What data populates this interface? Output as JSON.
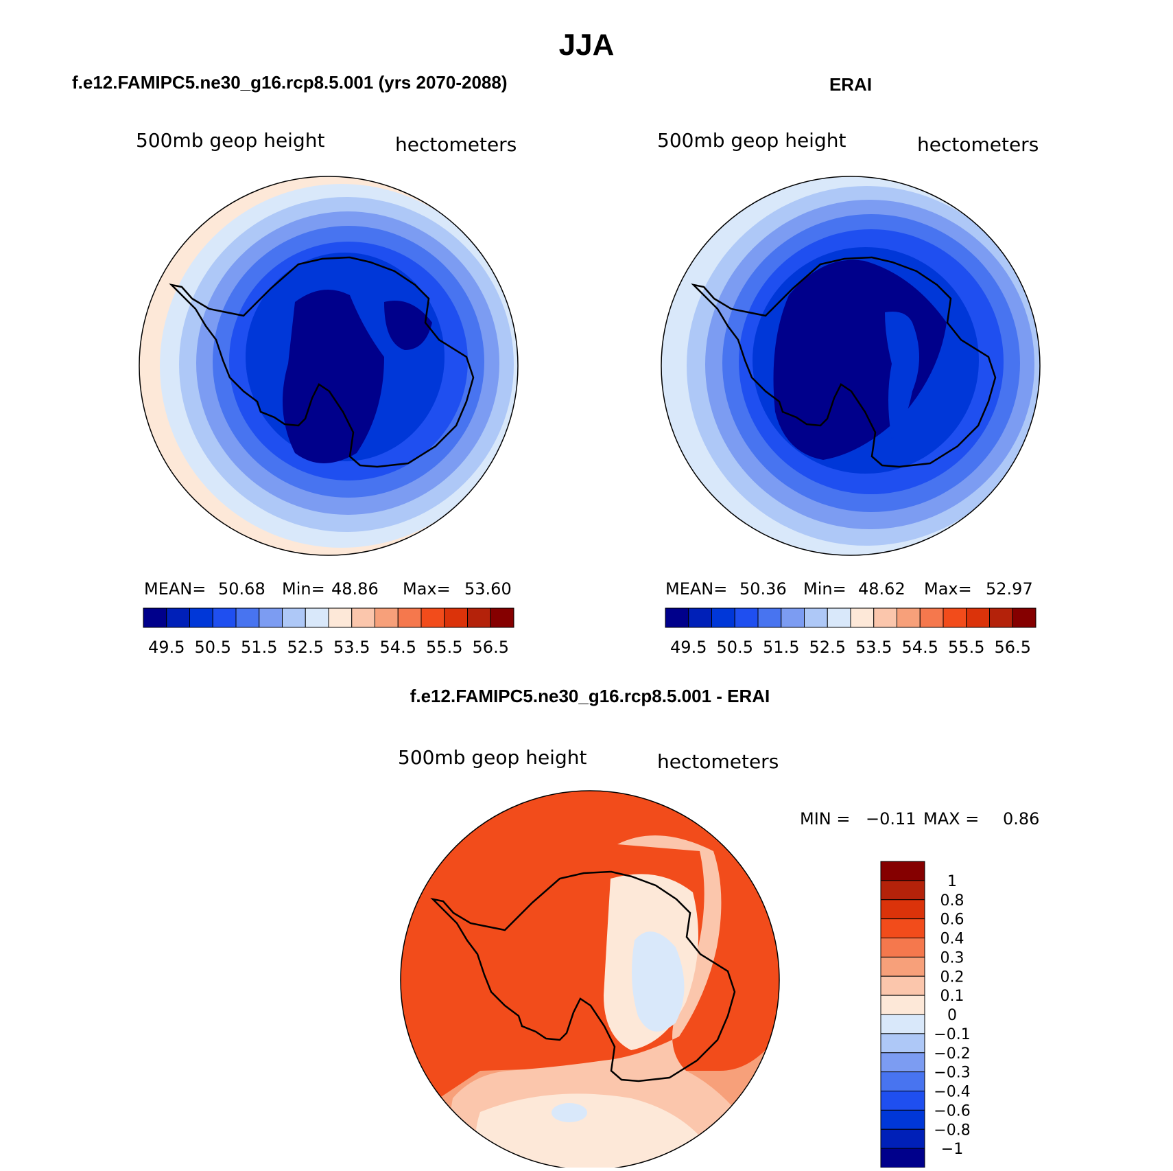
{
  "figure": {
    "season": "JJA"
  },
  "panels": {
    "model": {
      "case_title": "f.e12.FAMIPC5.ne30_g16.rcp8.5.001 (yrs 2070-2088)",
      "variable": "500mb geop height",
      "units": "hectometers",
      "stats": {
        "mean_label": "MEAN=",
        "mean": "50.68",
        "min_label": "Min=",
        "min": "48.86",
        "max_label": "Max=",
        "max": "53.60"
      }
    },
    "obs": {
      "case_title": "ERAI",
      "variable": "500mb geop height",
      "units": "hectometers",
      "stats": {
        "mean_label": "MEAN=",
        "mean": "50.36",
        "min_label": "Min=",
        "min": "48.62",
        "max_label": "Max=",
        "max": "52.97"
      }
    },
    "diff": {
      "case_title": "f.e12.FAMIPC5.ne30_g16.rcp8.5.001 - ERAI",
      "variable": "500mb geop height",
      "units": "hectometers",
      "stats": {
        "min_label": "MIN =",
        "min": "−0.11",
        "max_label": "MAX =",
        "max": "0.86"
      }
    }
  },
  "colorbars": {
    "abs": {
      "colors": [
        "#00008b",
        "#0020b8",
        "#0037d8",
        "#1f4ff0",
        "#4874f0",
        "#7c9cf2",
        "#aec8f7",
        "#d9e8fa",
        "#fde8d8",
        "#fbc6ac",
        "#f7a07a",
        "#f5784d",
        "#f24c1b",
        "#db330a",
        "#b4220a",
        "#850000"
      ],
      "labels": [
        "49.5",
        "50.5",
        "51.5",
        "52.5",
        "53.5",
        "54.5",
        "55.5",
        "56.5"
      ]
    },
    "diff": {
      "colors": [
        "#850000",
        "#b4220a",
        "#db330a",
        "#f24c1b",
        "#f5784d",
        "#f7a07a",
        "#fbc6ac",
        "#fde8d8",
        "#d9e8fa",
        "#aec8f7",
        "#7c9cf2",
        "#4874f0",
        "#1f4ff0",
        "#0037d8",
        "#0020b8",
        "#00008b"
      ],
      "labels": [
        "1",
        "0.8",
        "0.6",
        "0.4",
        "0.3",
        "0.2",
        "0.1",
        "0",
        "−0.1",
        "−0.2",
        "−0.3",
        "−0.4",
        "−0.6",
        "−0.8",
        "−1"
      ]
    }
  }
}
